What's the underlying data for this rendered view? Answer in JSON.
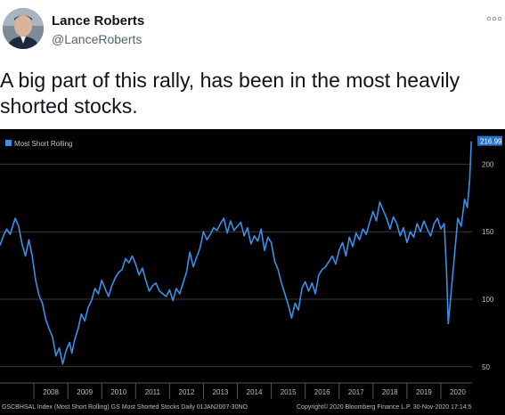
{
  "tweet": {
    "display_name": "Lance Roberts",
    "handle": "@LanceRoberts",
    "more_icon": "more-dots-icon",
    "text": "A big part of this rally, has been in the most heavily shorted stocks."
  },
  "chart_data": {
    "type": "line",
    "legend": "Most Short Rolling",
    "legend_position": "top-left",
    "x_ticks": [
      "2008",
      "2009",
      "2010",
      "2011",
      "2012",
      "2013",
      "2014",
      "2015",
      "2016",
      "2017",
      "2018",
      "2019",
      "2020"
    ],
    "y_ticks": [
      50,
      100,
      150,
      200
    ],
    "ylim": [
      38,
      226
    ],
    "xlim": [
      2007.0,
      2020.92
    ],
    "last_value_label": "216.99",
    "grid": true,
    "footer_left": "GSCBHSAL Index (Most Short Rolling) GS Most Shorted Stocks Daily 01JAN2007-30NO",
    "footer_right": "Copyright© 2020 Bloomberg Finance L.P.      30-Nov-2020 17:14:5",
    "colors": {
      "line": "#3b8fe8",
      "background": "#000000",
      "grid": "#3a3a3a",
      "label_bg": "#2a6fc9"
    },
    "series": [
      {
        "name": "Most Short Rolling",
        "x": [
          2007.0,
          2007.1,
          2007.2,
          2007.3,
          2007.45,
          2007.55,
          2007.65,
          2007.75,
          2007.85,
          2007.95,
          2008.05,
          2008.15,
          2008.25,
          2008.35,
          2008.45,
          2008.55,
          2008.65,
          2008.75,
          2008.85,
          2008.95,
          2009.05,
          2009.12,
          2009.2,
          2009.3,
          2009.4,
          2009.5,
          2009.6,
          2009.7,
          2009.8,
          2009.9,
          2010.0,
          2010.1,
          2010.2,
          2010.3,
          2010.4,
          2010.5,
          2010.6,
          2010.7,
          2010.8,
          2010.9,
          2011.0,
          2011.1,
          2011.2,
          2011.3,
          2011.4,
          2011.5,
          2011.6,
          2011.7,
          2011.8,
          2011.9,
          2012.0,
          2012.1,
          2012.2,
          2012.3,
          2012.4,
          2012.5,
          2012.6,
          2012.7,
          2012.8,
          2012.9,
          2013.0,
          2013.1,
          2013.2,
          2013.3,
          2013.4,
          2013.5,
          2013.6,
          2013.7,
          2013.8,
          2013.9,
          2014.0,
          2014.1,
          2014.2,
          2014.3,
          2014.4,
          2014.5,
          2014.6,
          2014.7,
          2014.8,
          2014.9,
          2015.0,
          2015.1,
          2015.2,
          2015.3,
          2015.4,
          2015.5,
          2015.6,
          2015.7,
          2015.8,
          2015.9,
          2016.0,
          2016.1,
          2016.2,
          2016.3,
          2016.4,
          2016.5,
          2016.6,
          2016.7,
          2016.8,
          2016.9,
          2017.0,
          2017.1,
          2017.2,
          2017.3,
          2017.4,
          2017.5,
          2017.6,
          2017.7,
          2017.8,
          2017.9,
          2018.0,
          2018.1,
          2018.2,
          2018.3,
          2018.4,
          2018.5,
          2018.6,
          2018.7,
          2018.8,
          2018.9,
          2019.0,
          2019.1,
          2019.2,
          2019.3,
          2019.4,
          2019.5,
          2019.6,
          2019.7,
          2019.8,
          2019.9,
          2020.0,
          2020.1,
          2020.17,
          2020.22,
          2020.3,
          2020.4,
          2020.5,
          2020.6,
          2020.7,
          2020.78,
          2020.85,
          2020.9
        ],
        "values": [
          140,
          147,
          152,
          148,
          160,
          154,
          141,
          132,
          144,
          132,
          114,
          103,
          97,
          85,
          78,
          72,
          58,
          64,
          52,
          62,
          68,
          60,
          70,
          78,
          89,
          84,
          94,
          99,
          108,
          104,
          114,
          108,
          102,
          110,
          116,
          120,
          122,
          130,
          127,
          132,
          126,
          118,
          123,
          114,
          106,
          110,
          112,
          106,
          104,
          102,
          107,
          99,
          108,
          104,
          112,
          120,
          135,
          124,
          131,
          138,
          150,
          144,
          148,
          153,
          151,
          156,
          160,
          149,
          158,
          151,
          154,
          157,
          147,
          153,
          141,
          147,
          143,
          152,
          136,
          146,
          142,
          128,
          122,
          112,
          104,
          96,
          86,
          97,
          92,
          108,
          113,
          106,
          112,
          104,
          118,
          122,
          124,
          128,
          132,
          126,
          136,
          142,
          132,
          146,
          139,
          149,
          144,
          152,
          148,
          157,
          165,
          158,
          172,
          166,
          160,
          152,
          161,
          156,
          147,
          153,
          142,
          150,
          146,
          156,
          150,
          158,
          152,
          147,
          156,
          160,
          152,
          156,
          120,
          82,
          104,
          132,
          160,
          154,
          174,
          168,
          188,
          216.99
        ]
      }
    ]
  }
}
